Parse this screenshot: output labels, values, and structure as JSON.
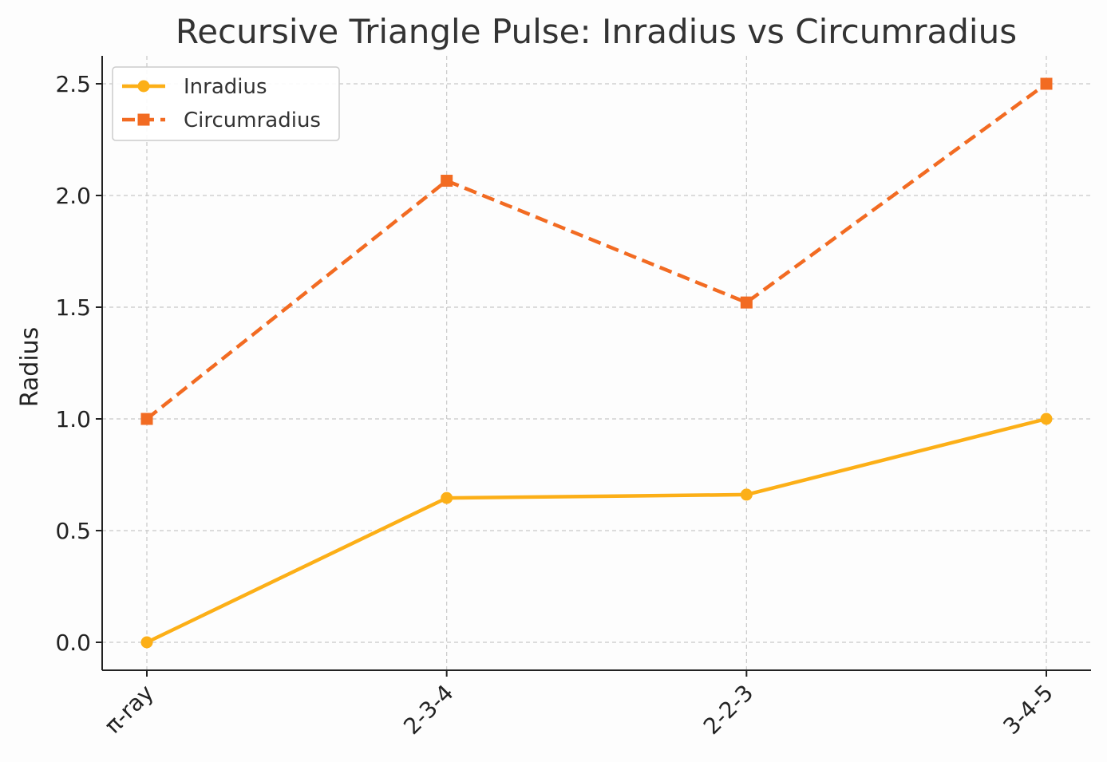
{
  "chart_data": {
    "type": "line",
    "title": "Recursive Triangle Pulse: Inradius vs Circumradius",
    "xlabel": "",
    "ylabel": "Radius",
    "categories": [
      "π-ray",
      "2-3-4",
      "2-2-3",
      "3-4-5"
    ],
    "ylim": [
      -0.125,
      2.625
    ],
    "yticks": [
      0.0,
      0.5,
      1.0,
      1.5,
      2.0,
      2.5
    ],
    "ytick_labels": [
      "0.0",
      "0.5",
      "1.0",
      "1.5",
      "2.0",
      "2.5"
    ],
    "grid": true,
    "legend_position": "top-left",
    "series": [
      {
        "name": "Inradius",
        "values": [
          0.0,
          0.646,
          0.661,
          1.0
        ],
        "color": "#fcaf17",
        "marker": "circle",
        "line_style": "solid"
      },
      {
        "name": "Circumradius",
        "values": [
          1.0,
          2.066,
          1.521,
          2.5
        ],
        "color": "#f26b22",
        "marker": "square",
        "line_style": "dashed"
      }
    ]
  }
}
